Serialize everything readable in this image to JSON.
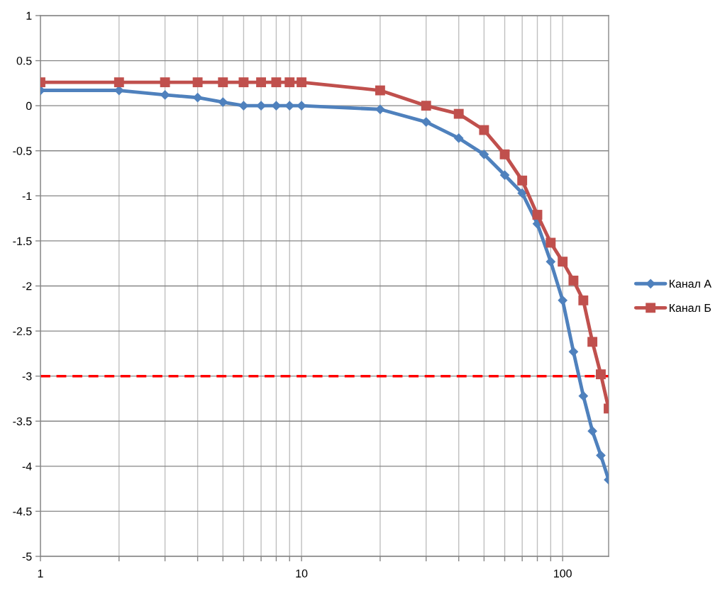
{
  "chart_data": {
    "type": "line",
    "x": [
      1,
      2,
      3,
      4,
      5,
      6,
      7,
      8,
      9,
      10,
      20,
      30,
      40,
      50,
      60,
      70,
      80,
      90,
      100,
      110,
      120,
      130,
      140,
      150
    ],
    "series": [
      {
        "name": "Канал А",
        "color": "#4f81bd",
        "marker": "diamond",
        "values": [
          0.17,
          0.17,
          0.12,
          0.09,
          0.04,
          0,
          0,
          0,
          0,
          0,
          -0.04,
          -0.18,
          -0.36,
          -0.54,
          -0.77,
          -0.97,
          -1.31,
          -1.73,
          -2.16,
          -2.73,
          -3.22,
          -3.61,
          -3.88,
          -4.15
        ]
      },
      {
        "name": "Канал Б",
        "color": "#c0504d",
        "marker": "square",
        "values": [
          0.26,
          0.26,
          0.26,
          0.26,
          0.26,
          0.26,
          0.26,
          0.26,
          0.26,
          0.26,
          0.17,
          0,
          -0.09,
          -0.27,
          -0.54,
          -0.83,
          -1.21,
          -1.52,
          -1.73,
          -1.94,
          -2.16,
          -2.62,
          -2.98,
          -3.36
        ]
      }
    ],
    "xlim": [
      1,
      150
    ],
    "ylim": [
      -5,
      1
    ],
    "xticks": [
      1,
      {
        "value": 2,
        "label": null
      },
      {
        "value": 3,
        "label": null
      },
      {
        "value": 4,
        "label": null
      },
      {
        "value": 5,
        "label": null
      },
      {
        "value": 6,
        "label": null
      },
      {
        "value": 7,
        "label": null
      },
      {
        "value": 8,
        "label": null
      },
      {
        "value": 9,
        "label": null
      },
      10,
      {
        "value": 20,
        "label": null
      },
      {
        "value": 30,
        "label": null
      },
      {
        "value": 40,
        "label": null
      },
      {
        "value": 50,
        "label": null
      },
      {
        "value": 60,
        "label": null
      },
      {
        "value": 70,
        "label": null
      },
      {
        "value": 80,
        "label": null
      },
      {
        "value": 90,
        "label": null
      },
      100
    ],
    "yticks": [
      1,
      0.5,
      0,
      -0.5,
      -1,
      -1.5,
      -2,
      -2.5,
      -3,
      -3.5,
      -4,
      -4.5,
      -5
    ],
    "log": "x",
    "grid": true,
    "legend": "right",
    "line_style": "solid",
    "ref_lines": [
      {
        "axis": "y",
        "value": -3,
        "color": "#ff0000",
        "line_style": "dashed"
      }
    ]
  }
}
